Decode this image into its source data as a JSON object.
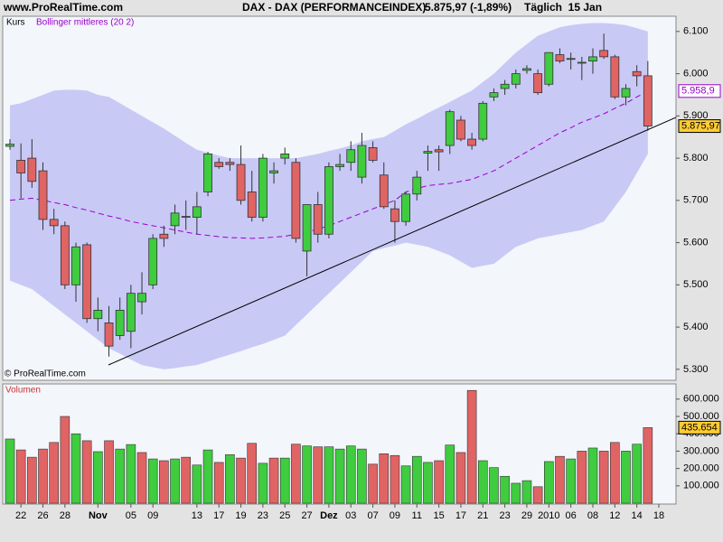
{
  "header": {
    "site": "www.ProRealTime.com",
    "instrument": "DAX - DAX (PERFORMANCEINDEX)",
    "quote": "5.875,97 (-1,89%)",
    "period": "Täglich  15 Jan"
  },
  "chart_data": [
    {
      "type": "candlestick",
      "name": "Kurs",
      "credit": "© ProRealTime.com",
      "categories": [
        null,
        "22",
        null,
        "26",
        null,
        "28",
        null,
        null,
        "Nov",
        null,
        null,
        "05",
        null,
        "09",
        null,
        null,
        null,
        "13",
        null,
        "17",
        null,
        "19",
        null,
        "23",
        null,
        "25",
        null,
        "27",
        null,
        "Dez",
        null,
        "03",
        null,
        "07",
        null,
        "09",
        null,
        "11",
        null,
        "15",
        null,
        "17",
        null,
        "21",
        null,
        "23",
        null,
        "29",
        null,
        "2010",
        null,
        "06",
        null,
        "08",
        null,
        "12",
        null,
        "14",
        null,
        "18"
      ],
      "open": [
        5828,
        5795,
        5800,
        5770,
        5655,
        5640,
        5500,
        5595,
        5420,
        5410,
        5380,
        5390,
        5460,
        5500,
        5620,
        5640,
        5660,
        5660,
        5720,
        5790,
        5790,
        5785,
        5720,
        5660,
        5765,
        5800,
        5790,
        5580,
        5690,
        5620,
        5780,
        5790,
        5755,
        5825,
        5760,
        5680,
        5650,
        5715,
        5812,
        5820,
        5830,
        5890,
        5845,
        5845,
        5945,
        5965,
        5975,
        6008,
        6000,
        5975,
        6045,
        6034,
        6025,
        6030,
        6055,
        6040,
        5945,
        6005,
        5995,
        null
      ],
      "high": [
        5845,
        5835,
        5845,
        5790,
        5680,
        5650,
        5600,
        5600,
        5470,
        5450,
        5470,
        5500,
        5530,
        5620,
        5640,
        5690,
        5700,
        5720,
        5815,
        5800,
        5800,
        5830,
        5770,
        5810,
        5790,
        5825,
        5800,
        5690,
        5720,
        5790,
        5810,
        5840,
        5860,
        5840,
        5790,
        5700,
        5720,
        5770,
        5830,
        5830,
        5915,
        5900,
        5860,
        5935,
        5965,
        5985,
        6010,
        6020,
        6010,
        6050,
        6060,
        6050,
        6040,
        6060,
        6095,
        6045,
        5975,
        6020,
        6030,
        null
      ],
      "low": [
        5820,
        5705,
        5730,
        5630,
        5620,
        5490,
        5460,
        5410,
        5390,
        5330,
        5370,
        5350,
        5430,
        5490,
        5590,
        5620,
        5630,
        5620,
        5710,
        5775,
        5770,
        5690,
        5650,
        5650,
        5740,
        5785,
        5600,
        5520,
        5600,
        5610,
        5770,
        5770,
        5740,
        5790,
        5680,
        5600,
        5640,
        5700,
        5770,
        5770,
        5810,
        5840,
        5820,
        5840,
        5935,
        5950,
        5965,
        6000,
        5950,
        5970,
        6025,
        6010,
        5985,
        6000,
        6035,
        5940,
        5925,
        5970,
        5865,
        null
      ],
      "close": [
        5833,
        5765,
        5745,
        5655,
        5640,
        5500,
        5590,
        5420,
        5440,
        5355,
        5440,
        5480,
        5480,
        5610,
        5610,
        5670,
        5662,
        5685,
        5810,
        5780,
        5785,
        5700,
        5660,
        5800,
        5770,
        5810,
        5610,
        5690,
        5620,
        5780,
        5785,
        5820,
        5830,
        5795,
        5685,
        5650,
        5715,
        5755,
        5816,
        5815,
        5910,
        5845,
        5830,
        5930,
        5955,
        5975,
        6000,
        6012,
        5955,
        6050,
        6030,
        6036,
        6027,
        6040,
        6040,
        5945,
        5965,
        5995,
        5875.97,
        null
      ],
      "close_label": "5.875,97",
      "colors": {
        "up": "#3fcc3f",
        "down": "#e06464",
        "edge": "#333333"
      },
      "bollinger": {
        "name": "Bollinger mittleres (20 2)",
        "color": "#9900cc",
        "band_color": "#c9c9f6",
        "middle": [
          5700,
          5703,
          5705,
          5700,
          5695,
          5690,
          5683,
          5677,
          5670,
          5663,
          5657,
          5650,
          5645,
          5640,
          5635,
          5630,
          5625,
          5620,
          5617,
          5614,
          5612,
          5611,
          5610,
          5611,
          5613,
          5615,
          5620,
          5625,
          5632,
          5640,
          5650,
          5660,
          5670,
          5680,
          5690,
          5700,
          5720,
          5728,
          5735,
          5738,
          5740,
          5745,
          5750,
          5760,
          5770,
          5785,
          5800,
          5815,
          5830,
          5845,
          5860,
          5872,
          5885,
          5895,
          5905,
          5918,
          5930,
          5945,
          5958.9,
          null
        ],
        "upper": [
          5925,
          5930,
          5940,
          5950,
          5960,
          5962,
          5962,
          5960,
          5950,
          5945,
          5930,
          5915,
          5900,
          5885,
          5870,
          5853,
          5836,
          5820,
          5813,
          5806,
          5800,
          5800,
          5800,
          5800,
          5800,
          5800,
          5800,
          5805,
          5810,
          5817,
          5823,
          5830,
          5840,
          5845,
          5850,
          5865,
          5880,
          5893,
          5907,
          5920,
          5933,
          5947,
          5960,
          5980,
          6000,
          6025,
          6050,
          6070,
          6090,
          6100,
          6110,
          6115,
          6118,
          6120,
          6120,
          6118,
          6115,
          6108,
          6100,
          null
        ],
        "lower": [
          5510,
          5500,
          5490,
          5470,
          5450,
          5430,
          5410,
          5390,
          5370,
          5350,
          5337,
          5323,
          5310,
          5305,
          5300,
          5303,
          5307,
          5310,
          5318,
          5327,
          5335,
          5343,
          5352,
          5360,
          5370,
          5380,
          5405,
          5430,
          5455,
          5480,
          5505,
          5530,
          5555,
          5580,
          5587,
          5593,
          5600,
          5595,
          5590,
          5580,
          5570,
          5555,
          5540,
          5545,
          5550,
          5570,
          5590,
          5600,
          5610,
          5615,
          5620,
          5625,
          5630,
          5640,
          5650,
          5685,
          5720,
          5765,
          5810,
          null
        ],
        "middle_label": "5.958,9"
      },
      "ylim": [
        5274,
        6136
      ],
      "yticks": [
        {
          "value": 5300,
          "label": "5.300"
        },
        {
          "value": 5400,
          "label": "5.400"
        },
        {
          "value": 5500,
          "label": "5.500"
        },
        {
          "value": 5600,
          "label": "5.600"
        },
        {
          "value": 5700,
          "label": "5.700"
        },
        {
          "value": 5800,
          "label": "5.800"
        },
        {
          "value": 5900,
          "label": "5.900"
        },
        {
          "value": 6000,
          "label": "6.000"
        },
        {
          "value": 6100,
          "label": "6.100"
        }
      ]
    },
    {
      "type": "bar",
      "title": "Volumen",
      "values": [
        370000,
        307000,
        265000,
        312000,
        350000,
        500000,
        400000,
        360000,
        297000,
        360000,
        312000,
        338000,
        292000,
        255000,
        245000,
        255000,
        265000,
        220000,
        307000,
        235000,
        280000,
        260000,
        345000,
        230000,
        260000,
        260000,
        340000,
        330000,
        325000,
        325000,
        312000,
        330000,
        312000,
        225000,
        285000,
        275000,
        215000,
        270000,
        235000,
        245000,
        335000,
        292000,
        650000,
        245000,
        205000,
        155000,
        115000,
        130000,
        95000,
        240000,
        270000,
        255000,
        300000,
        318000,
        300000,
        350000,
        300000,
        340000,
        435654,
        null
      ],
      "value_label": "435.654",
      "ylim": [
        -5000,
        687500
      ],
      "yticks": [
        {
          "value": 100000,
          "label": "100.000"
        },
        {
          "value": 200000,
          "label": "200.000"
        },
        {
          "value": 300000,
          "label": "300.000"
        },
        {
          "value": 400000,
          "label": "400.000"
        },
        {
          "value": 500000,
          "label": "500.000"
        },
        {
          "value": 600000,
          "label": "600.000"
        }
      ]
    }
  ]
}
